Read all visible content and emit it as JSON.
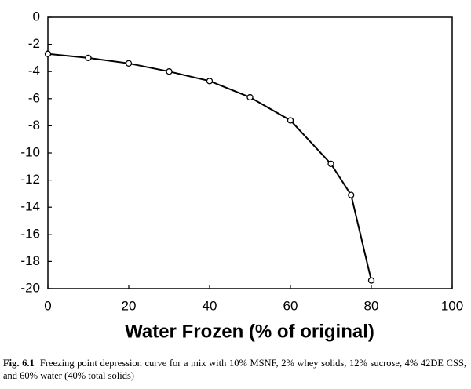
{
  "chart_data": {
    "type": "line",
    "xlabel": "Water Frozen (% of original)",
    "caption_label": "Fig. 6.1",
    "caption": "Freezing point depression curve for a mix with 10% MSNF, 2% whey solids, 12% sucrose, 4% 42DE CSS, and 60% water (40% total solids)",
    "x": [
      0,
      10,
      20,
      30,
      40,
      50,
      60,
      70,
      75,
      80
    ],
    "series": [
      {
        "color": "#000000",
        "values": [
          -2.7,
          -3.0,
          -3.4,
          -4.0,
          -4.7,
          -5.9,
          -7.6,
          -10.8,
          -13.1,
          -19.4
        ]
      }
    ],
    "xlim": [
      0,
      100
    ],
    "xticks": [
      0,
      20,
      40,
      60,
      80,
      100
    ],
    "ylim": [
      -20,
      0
    ],
    "yticks": [
      0,
      -2,
      -4,
      -6,
      -8,
      -10,
      -12,
      -14,
      -16,
      -18,
      -20
    ]
  }
}
